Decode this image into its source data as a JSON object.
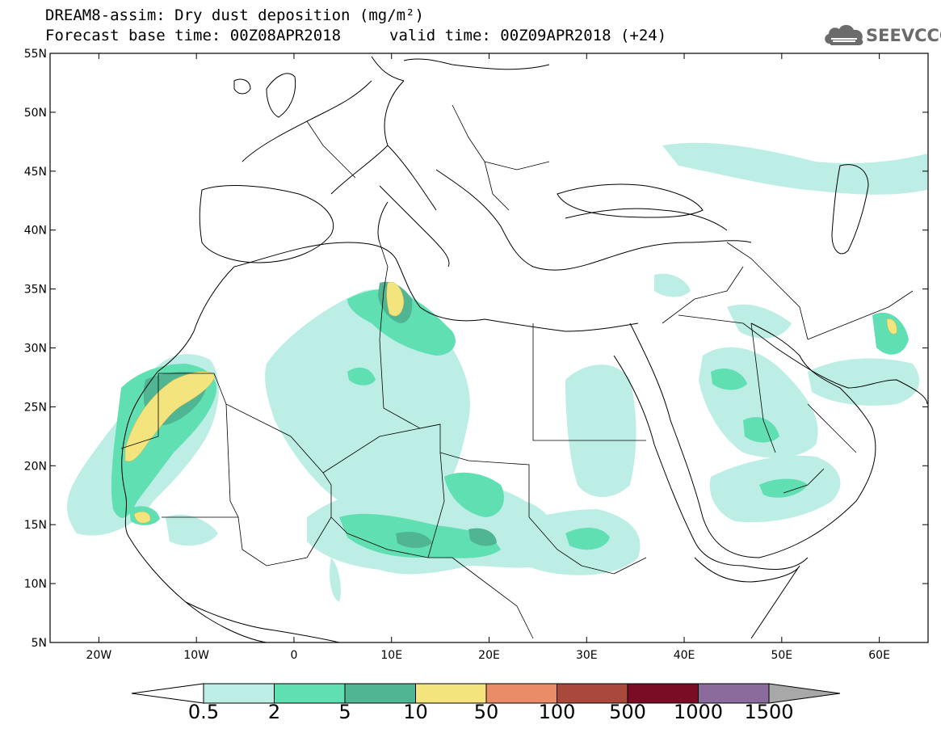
{
  "title": {
    "line1": "DREAM8-assim: Dry dust deposition (mg/m²)",
    "line2": "Forecast base time: 00Z08APR2018",
    "valid": "valid time: 00Z09APR2018 (+24)"
  },
  "logo": {
    "text": "SEEVCCC",
    "icon": "cloud-icon"
  },
  "axes": {
    "lat_labels": [
      "55N",
      "50N",
      "45N",
      "40N",
      "35N",
      "30N",
      "25N",
      "20N",
      "15N",
      "10N",
      "5N"
    ],
    "lat_values": [
      55,
      50,
      45,
      40,
      35,
      30,
      25,
      20,
      15,
      10,
      5
    ],
    "lon_labels": [
      "20W",
      "10W",
      "0",
      "10E",
      "20E",
      "30E",
      "40E",
      "50E",
      "60E"
    ],
    "lon_values": [
      -20,
      -10,
      0,
      10,
      20,
      30,
      40,
      50,
      60
    ],
    "lon_range": [
      -25,
      65
    ],
    "lat_range": [
      5,
      55
    ]
  },
  "colorbar": {
    "labels": [
      "0.5",
      "2",
      "5",
      "10",
      "50",
      "100",
      "500",
      "1000",
      "1500"
    ],
    "colors": [
      "#bdeee6",
      "#60dfb3",
      "#4fb592",
      "#f3e47e",
      "#ea8c67",
      "#a9493b",
      "#7b0c25",
      "#8a6b9c",
      "#a8a8a8"
    ]
  }
}
